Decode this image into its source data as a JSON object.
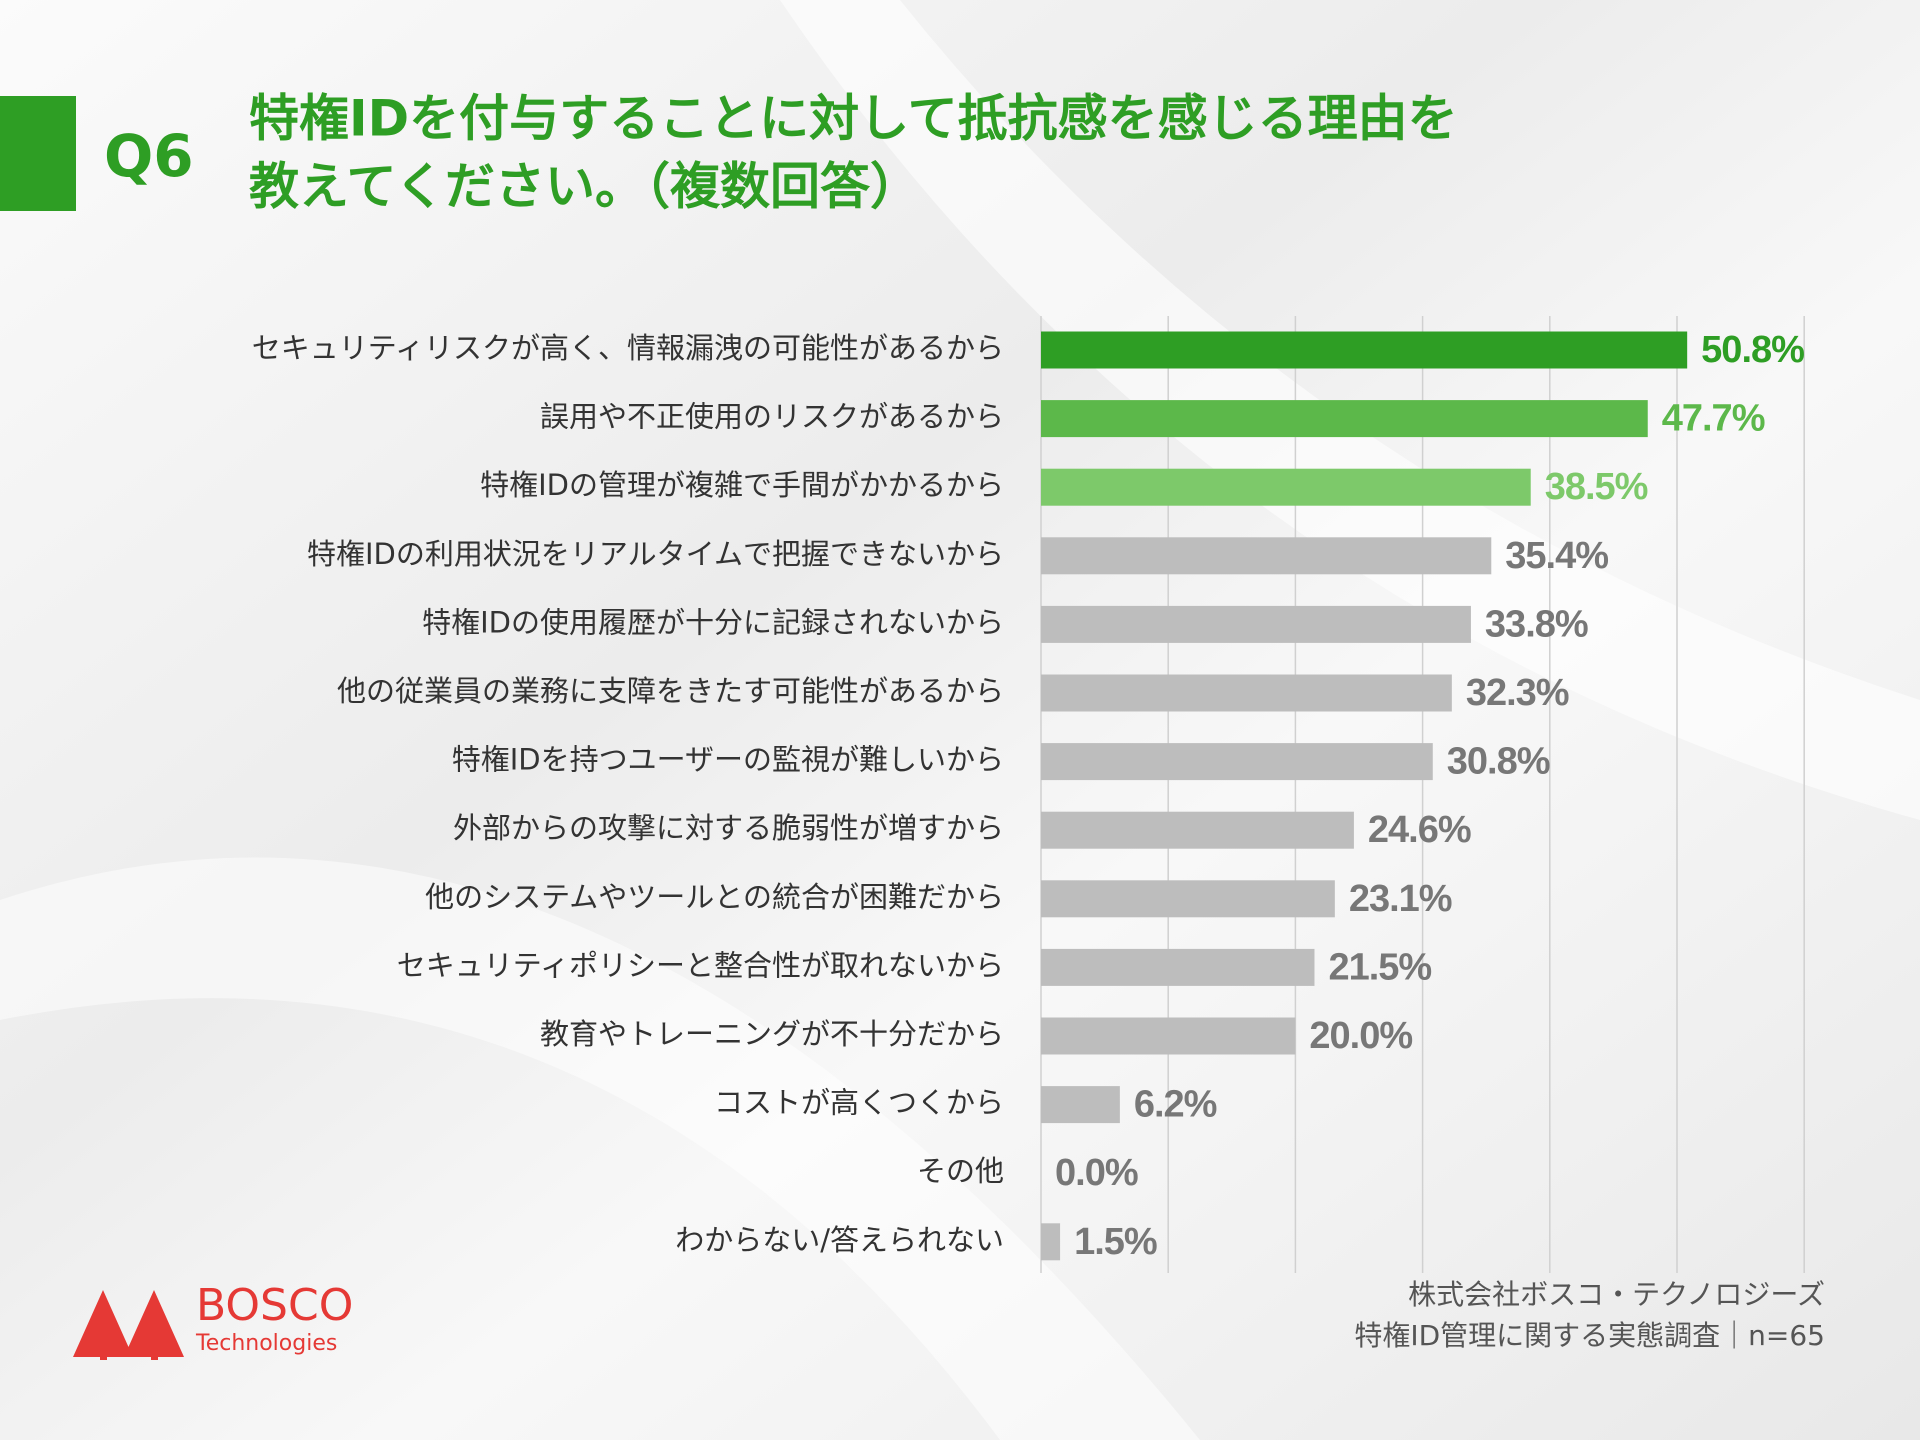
{
  "chart_data": {
    "type": "bar",
    "orientation": "horizontal",
    "question": "Q6",
    "title_lines": [
      "特権IDを付与することに対して抵抗感を感じる理由を",
      "教えてください。（複数回答）"
    ],
    "categories": [
      "セキュリティリスクが高く、情報漏洩の可能性があるから",
      "誤用や不正使用のリスクがあるから",
      "特権IDの管理が複雑で手間がかかるから",
      "特権IDの利用状況をリアルタイムで把握できないから",
      "特権IDの使用履歴が十分に記録されないから",
      "他の従業員の業務に支障をきたす可能性があるから",
      "特権IDを持つユーザーの監視が難しいから",
      "外部からの攻撃に対する脆弱性が増すから",
      "他のシステムやツールとの統合が困難だから",
      "セキュリティポリシーと整合性が取れないから",
      "教育やトレーニングが不十分だから",
      "コストが高くつくから",
      "その他",
      "わからない/答えられない"
    ],
    "values": [
      50.8,
      47.7,
      38.5,
      35.4,
      33.8,
      32.3,
      30.8,
      24.6,
      23.1,
      21.5,
      20.0,
      6.2,
      0.0,
      1.5
    ],
    "value_labels": [
      "50.8%",
      "47.7%",
      "38.5%",
      "35.4%",
      "33.8%",
      "32.3%",
      "30.8%",
      "24.6%",
      "23.1%",
      "21.5%",
      "20.0%",
      "6.2%",
      "0.0%",
      "1.5%"
    ],
    "colors": [
      "#2e9e24",
      "#5cb84a",
      "#7dc96a",
      "#bdbdbd",
      "#bdbdbd",
      "#bdbdbd",
      "#bdbdbd",
      "#bdbdbd",
      "#bdbdbd",
      "#bdbdbd",
      "#bdbdbd",
      "#bdbdbd",
      "#bdbdbd",
      "#bdbdbd"
    ],
    "label_colors": [
      "#2e9e24",
      "#5cb84a",
      "#7dc96a",
      "#777777",
      "#777777",
      "#777777",
      "#777777",
      "#777777",
      "#777777",
      "#777777",
      "#777777",
      "#777777",
      "#777777",
      "#777777"
    ],
    "xlim": [
      0,
      60
    ],
    "xticks": [
      0,
      10,
      20,
      30,
      40,
      50,
      60
    ],
    "grid": true,
    "source_lines": [
      "株式会社ボスコ・テクノロジーズ",
      "特権ID管理に関する実態調査｜n=65"
    ],
    "logo": {
      "name": "BOSCO",
      "sub": "Technologies"
    }
  }
}
